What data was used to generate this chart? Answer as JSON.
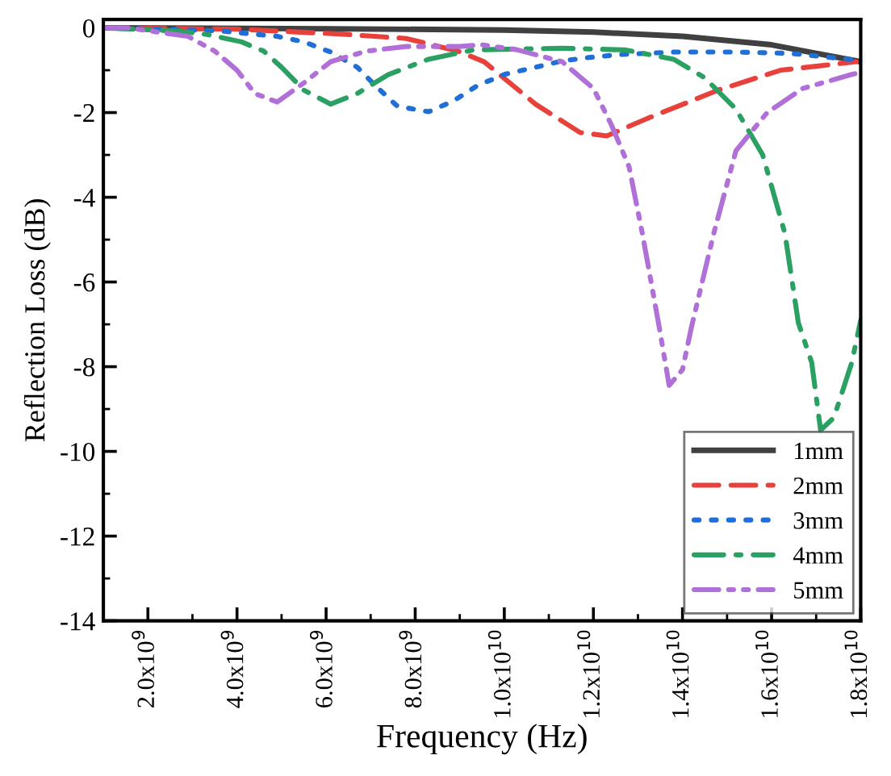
{
  "chart_data": {
    "type": "line",
    "xlabel": "Frequency (Hz)",
    "ylabel": "Reflection Loss (dB)",
    "xlim": [
      1000000000,
      18000000000
    ],
    "ylim": [
      -14,
      0.2
    ],
    "xticks": [
      {
        "value": 2000000000,
        "label": "2.0x10$^{9}$"
      },
      {
        "value": 4000000000,
        "label": "4.0x10$^{9}$"
      },
      {
        "value": 6000000000,
        "label": "6.0x10$^{9}$"
      },
      {
        "value": 8000000000,
        "label": "8.0x10$^{9}$"
      },
      {
        "value": 10000000000,
        "label": "1.0x10$^{10}$"
      },
      {
        "value": 12000000000,
        "label": "1.2x10$^{10}$"
      },
      {
        "value": 14000000000,
        "label": "1.4x10$^{10}$"
      },
      {
        "value": 16000000000,
        "label": "1.6x10$^{10}$"
      },
      {
        "value": 18000000000,
        "label": "1.8x10$^{10}$"
      }
    ],
    "yticks": [
      0,
      -2,
      -4,
      -6,
      -8,
      -10,
      -12,
      -14
    ],
    "grid": false,
    "legend": "bottom right",
    "series": [
      {
        "name": "1mm",
        "color": "#404040",
        "line_style": "solid",
        "x": [
          1000000000,
          6000000000,
          10000000000,
          12000000000,
          14000000000,
          16000000000,
          17000000000,
          18000000000
        ],
        "values": [
          0,
          -0.02,
          -0.05,
          -0.1,
          -0.2,
          -0.4,
          -0.6,
          -0.8
        ]
      },
      {
        "name": "2mm",
        "color": "#e8413c",
        "line_style": "dashed",
        "x": [
          1000000000,
          4000000000,
          6400000000,
          7800000000,
          8960000000,
          9550000000,
          10700000000,
          11700000000,
          12300000000,
          13300000000,
          14800000000,
          16200000000,
          17900000000
        ],
        "values": [
          0,
          -0.03,
          -0.15,
          -0.25,
          -0.55,
          -0.8,
          -1.8,
          -2.47,
          -2.55,
          -2.1,
          -1.47,
          -1.0,
          -0.8
        ]
      },
      {
        "name": "3mm",
        "color": "#1f6fd6",
        "line_style": "dotted",
        "x": [
          1000000000,
          3600000000,
          4900000000,
          5500000000,
          6100000000,
          6700000000,
          7100000000,
          7600000000,
          8300000000,
          8850000000,
          9400000000,
          10000000000,
          10700000000,
          11300000000,
          11900000000,
          12600000000,
          13800000000,
          15100000000,
          16400000000,
          17800000000
        ],
        "values": [
          0,
          -0.07,
          -0.2,
          -0.33,
          -0.57,
          -0.93,
          -1.36,
          -1.85,
          -1.98,
          -1.73,
          -1.36,
          -1.1,
          -0.93,
          -0.78,
          -0.7,
          -0.63,
          -0.57,
          -0.57,
          -0.6,
          -0.75
        ]
      },
      {
        "name": "4mm",
        "color": "#2aa062",
        "line_style": "dashdot",
        "x": [
          1000000000,
          2600000000,
          3300000000,
          4100000000,
          4600000000,
          5000000000,
          5500000000,
          6100000000,
          6700000000,
          7400000000,
          8300000000,
          9300000000,
          11300000000,
          12700000000,
          13800000000,
          14500000000,
          15200000000,
          15800000000,
          16300000000,
          16600000000,
          16900000000,
          17100000000,
          17400000000,
          17800000000,
          18000000000
        ],
        "values": [
          0,
          -0.07,
          -0.15,
          -0.33,
          -0.55,
          -0.93,
          -1.47,
          -1.8,
          -1.55,
          -1.1,
          -0.74,
          -0.52,
          -0.48,
          -0.52,
          -0.74,
          -1.18,
          -1.92,
          -3.0,
          -4.86,
          -6.96,
          -7.9,
          -9.5,
          -9.2,
          -7.9,
          -6.9
        ]
      },
      {
        "name": "5mm",
        "color": "#b070d8",
        "line_style": "dashdotdot",
        "x": [
          1000000000,
          1550000000,
          2900000000,
          3500000000,
          4000000000,
          4400000000,
          4900000000,
          5500000000,
          6100000000,
          6900000000,
          7800000000,
          9000000000,
          9500000000,
          10300000000,
          11300000000,
          12000000000,
          12400000000,
          12800000000,
          13100000000,
          13500000000,
          13700000000,
          14000000000,
          14200000000,
          14700000000,
          15200000000,
          15900000000,
          16700000000,
          17800000000,
          18000000000
        ],
        "values": [
          0,
          0,
          -0.2,
          -0.55,
          -1.0,
          -1.55,
          -1.75,
          -1.3,
          -0.8,
          -0.55,
          -0.44,
          -0.44,
          -0.4,
          -0.52,
          -0.8,
          -1.43,
          -2.28,
          -3.28,
          -4.86,
          -7.2,
          -8.44,
          -8.07,
          -7.07,
          -4.86,
          -2.9,
          -2.0,
          -1.43,
          -1.1,
          -1.05
        ]
      }
    ]
  }
}
